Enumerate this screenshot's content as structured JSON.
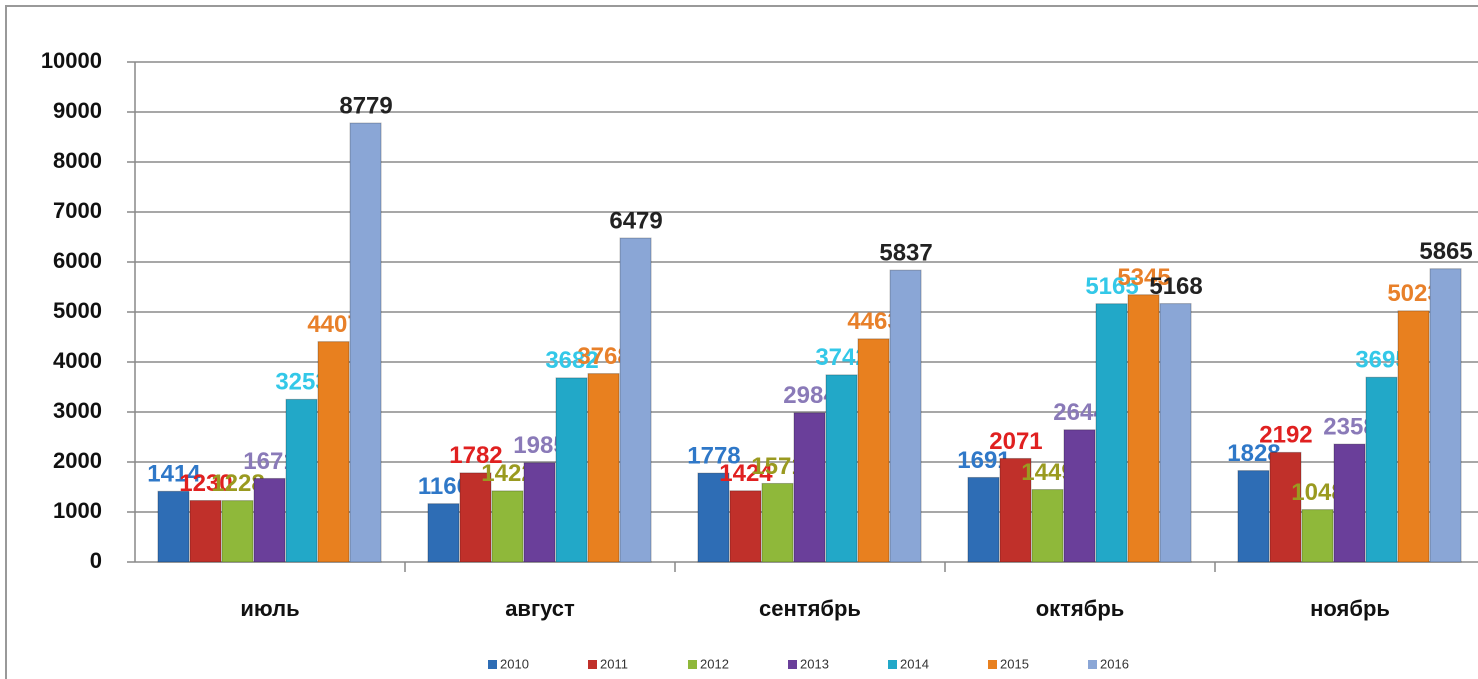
{
  "chart_data": {
    "type": "bar",
    "categories": [
      "июль",
      "август",
      "сентябрь",
      "октябрь",
      "ноябрь"
    ],
    "series": [
      {
        "name": "2010",
        "color": "#2e6db5",
        "label_color": "#2f78c8",
        "values": [
          1414,
          1166,
          1778,
          1691,
          1828
        ]
      },
      {
        "name": "2011",
        "color": "#c0302a",
        "label_color": "#e02020",
        "values": [
          1230,
          1782,
          1424,
          2071,
          2192
        ]
      },
      {
        "name": "2012",
        "color": "#8fb83a",
        "label_color": "#9a9a20",
        "values": [
          1228,
          1422,
          1571,
          1449,
          1048
        ]
      },
      {
        "name": "2013",
        "color": "#6a3f9a",
        "label_color": "#8a7ab8",
        "values": [
          1671,
          1985,
          2984,
          2644,
          2358
        ]
      },
      {
        "name": "2014",
        "color": "#22a8c8",
        "label_color": "#33c8e8",
        "values": [
          3253,
          3682,
          3742,
          5165,
          3695
        ]
      },
      {
        "name": "2015",
        "color": "#e8801f",
        "label_color": "#e8802a",
        "values": [
          4407,
          3768,
          4463,
          5345,
          5023
        ]
      },
      {
        "name": "2016",
        "color": "#8aa6d6",
        "label_color": "#222222",
        "values": [
          8779,
          6479,
          5837,
          5168,
          5865
        ]
      }
    ],
    "ylim": [
      0,
      10000
    ],
    "yticks": [
      0,
      1000,
      2000,
      3000,
      4000,
      5000,
      6000,
      7000,
      8000,
      9000,
      10000
    ],
    "grid": true
  }
}
